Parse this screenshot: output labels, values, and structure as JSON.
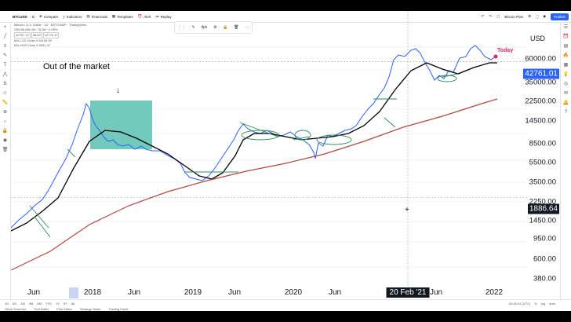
{
  "toolbar": {
    "symbol": "BTCUSD",
    "interval": "D",
    "compare_label": "Compare",
    "indicators_label": "Indicators",
    "financials_label": "Financials",
    "templates_label": "Templates",
    "alert_label": "Alert",
    "replay_label": "Replay",
    "plan_label": "Bitcoin Plan",
    "publish_label": "Publish"
  },
  "legend": {
    "title": "Bitcoin / U.S. Dollar · 1D · BITSTAMP · TradingView",
    "ohlc": "O59.56 H60.94 −32.56 −1.09%",
    "ma1_tag": "42767.74",
    "ma1_val": "38.00",
    "ma1_val2": "42776.11",
    "ma2_label": "MA 1.2D Close 0  26109.99",
    "ma3_label": "MA 1400 Close 0  9091.47"
  },
  "drawing_toolbar": {
    "width_label": "4px"
  },
  "annotations": {
    "out_of_market": "Out of the market",
    "today": "Today"
  },
  "axis": {
    "currency": "USD",
    "y_ticks": [
      "60000.00",
      "35000.00",
      "22500.00",
      "14500.00",
      "8500.00",
      "5500.00",
      "3500.00",
      "2250.00",
      "1450.00",
      "950.00",
      "600.00",
      "380.00"
    ],
    "price_tag": "42761.01",
    "cursor_price": "1886.64",
    "x_ticks": [
      "Jun",
      "2018",
      "Jun",
      "2019",
      "Jun",
      "2020",
      "Jun",
      "Jun",
      "2022"
    ],
    "cursor_date": "20 Feb '21"
  },
  "colors": {
    "price": "#2962ff",
    "ma_short": "#000000",
    "ma_long": "#b2473c",
    "highlight": "#5bbfb0",
    "price_tag_bg": "#2962ff",
    "cursor_tag_bg": "#131722",
    "today": "#e0245e",
    "circles": "#2e8b57"
  },
  "timeframes": [
    "1D",
    "5D",
    "1M",
    "3M",
    "6M",
    "YTD",
    "1Y",
    "5Y",
    "All"
  ],
  "panels": [
    "Stock Screener",
    "Text Notes",
    "Pine Editor",
    "Strategy Tester",
    "Trading Panel"
  ],
  "clock": {
    "time": "04:45:01 (UTC)",
    "pct": "%",
    "log": "log",
    "auto": "auto"
  },
  "left_tool_icons": [
    "crosshair-icon",
    "trendline-icon",
    "fib-icon",
    "brush-icon",
    "text-icon",
    "pattern-icon",
    "prediction-icon",
    "icons-icon",
    "ruler-icon",
    "zoom-icon",
    "magnet-icon",
    "lock-icon",
    "eye-icon",
    "trash-icon"
  ],
  "right_tool_icons": [
    "watchlist-icon",
    "alerts-icon",
    "data-window-icon",
    "hotlist-icon",
    "calendar-icon",
    "ideas-icon",
    "streams-icon",
    "chats-icon",
    "notifications-icon",
    "help-icon"
  ]
}
